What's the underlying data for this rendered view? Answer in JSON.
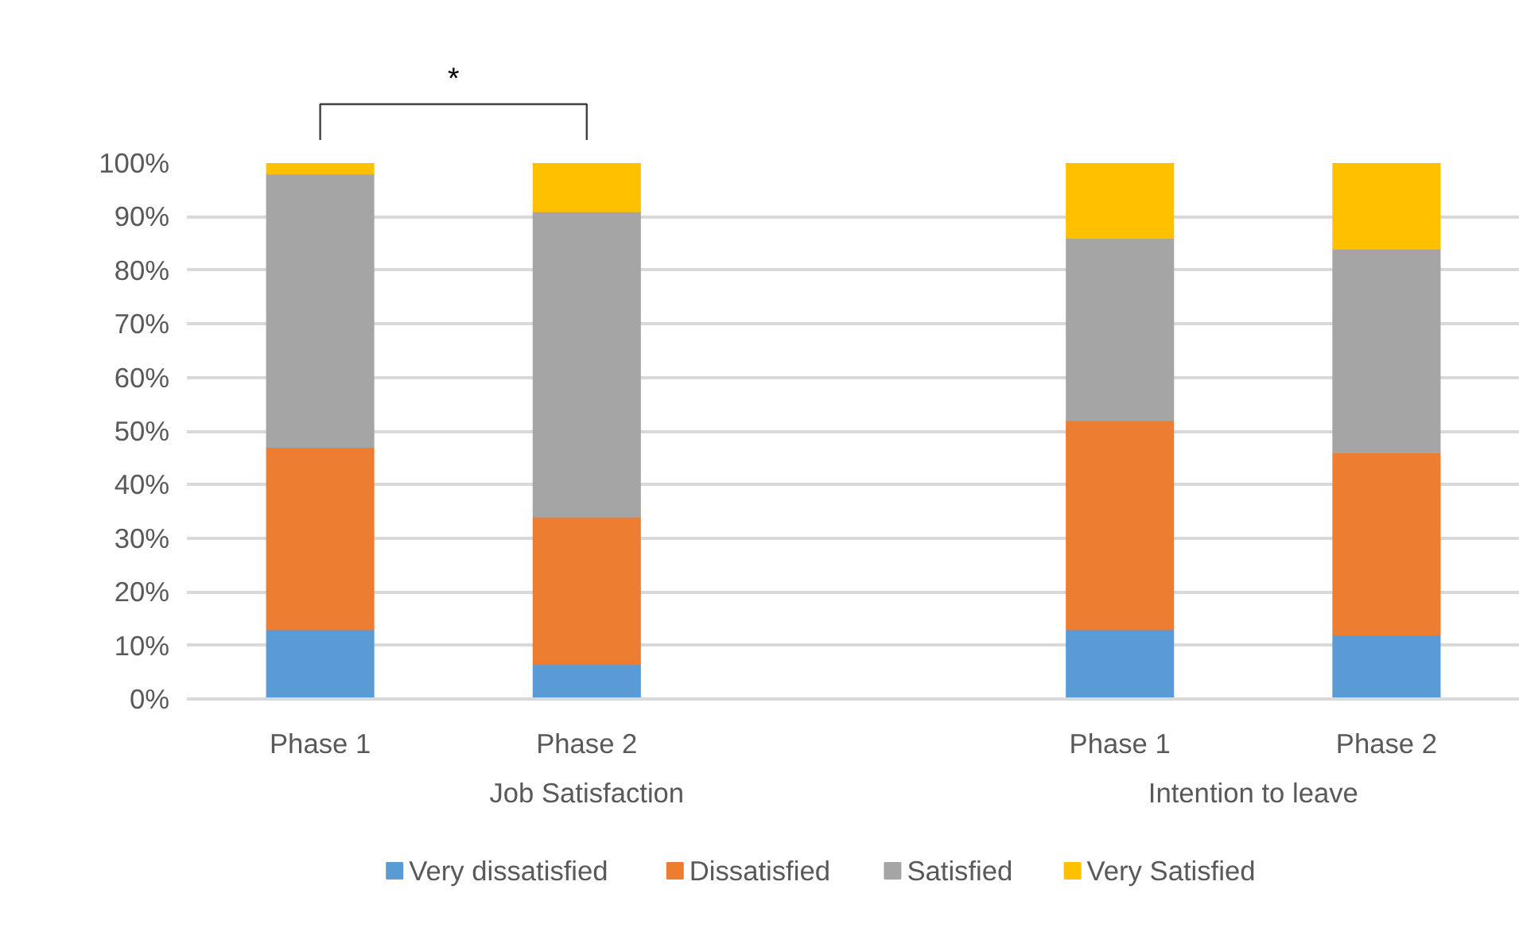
{
  "chart_data": {
    "type": "bar",
    "stacked": true,
    "categories": [
      "Phase 1",
      "Phase 2",
      null,
      "Phase 1",
      "Phase 2"
    ],
    "series": [
      {
        "name": "Very dissatisfied",
        "color": "#5b9bd5",
        "values": [
          13,
          6.5,
          null,
          13,
          12
        ]
      },
      {
        "name": "Dissatisfied",
        "color": "#ed7d31",
        "values": [
          34,
          27.5,
          null,
          39,
          34
        ]
      },
      {
        "name": "Satisfied",
        "color": "#a5a5a5",
        "values": [
          51,
          57,
          null,
          34,
          38
        ]
      },
      {
        "name": "Very Satisfied",
        "color": "#ffc000",
        "values": [
          2,
          9,
          null,
          14,
          16
        ]
      }
    ],
    "ylim": [
      0,
      100
    ],
    "yticks": [
      {
        "value": 0,
        "label": "0%"
      },
      {
        "value": 10,
        "label": "10%"
      },
      {
        "value": 20,
        "label": "20%"
      },
      {
        "value": 30,
        "label": "30%"
      },
      {
        "value": 40,
        "label": "40%"
      },
      {
        "value": 50,
        "label": "50%"
      },
      {
        "value": 60,
        "label": "60%"
      },
      {
        "value": 70,
        "label": "70%"
      },
      {
        "value": 80,
        "label": "80%"
      },
      {
        "value": 90,
        "label": "90%"
      },
      {
        "value": 100,
        "label": "100%"
      }
    ],
    "grid": "y",
    "legend": "bottom",
    "annotations": [
      "*",
      "Job Satisfaction",
      "Intention to leave"
    ]
  }
}
